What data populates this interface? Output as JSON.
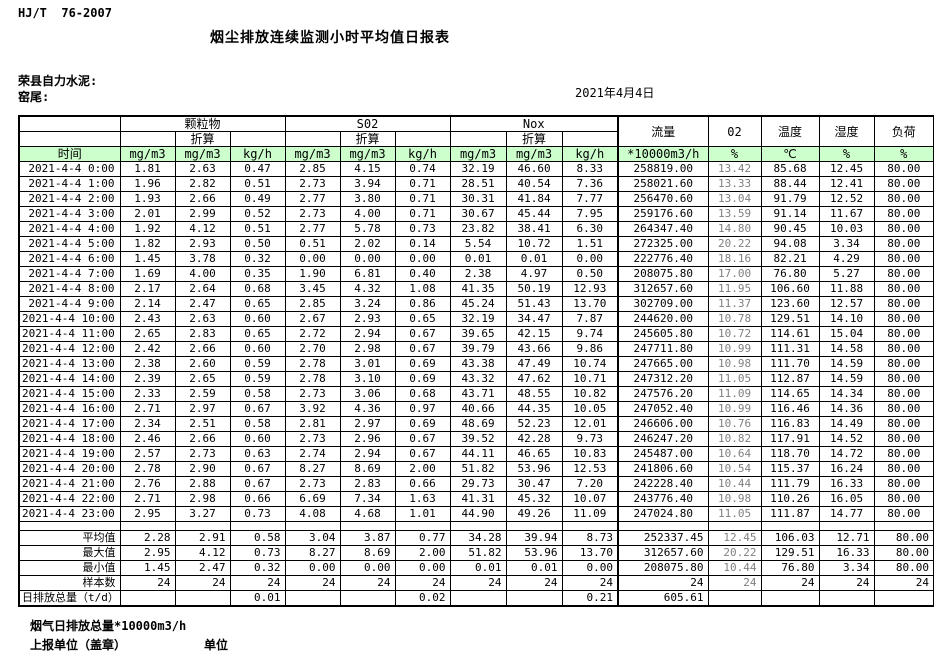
{
  "page": {
    "standard_code": "HJ/T  76-2007",
    "title": "烟尘排放连续监测小时平均值日报表",
    "company": "荣县自力水泥:",
    "location": "窑尾:",
    "date": "2021年4月4日"
  },
  "colors": {
    "header_green": "#ccffcc",
    "o2_value_text": "#808080",
    "border": "#000000"
  },
  "table": {
    "time_label": "时间",
    "converted_label": "折算",
    "groups": {
      "particulate": "颗粒物",
      "so2": "S02",
      "nox": "Nox",
      "flow": "流量",
      "o2": "02",
      "temperature": "温度",
      "humidity": "湿度",
      "load": "负荷"
    },
    "units": [
      "mg/m3",
      "mg/m3",
      "kg/h",
      "mg/m3",
      "mg/m3",
      "kg/h",
      "mg/m3",
      "mg/m3",
      "kg/h",
      "*10000m3/h",
      "%",
      "℃",
      "%",
      "%"
    ],
    "rows": [
      {
        "time": "2021-4-4 0:00",
        "values": [
          "1.81",
          "2.63",
          "0.47",
          "2.85",
          "4.15",
          "0.74",
          "32.19",
          "46.60",
          "8.33",
          "258819.00",
          "13.42",
          "85.68",
          "12.45",
          "80.00"
        ]
      },
      {
        "time": "2021-4-4 1:00",
        "values": [
          "1.96",
          "2.82",
          "0.51",
          "2.73",
          "3.94",
          "0.71",
          "28.51",
          "40.54",
          "7.36",
          "258021.60",
          "13.33",
          "88.44",
          "12.41",
          "80.00"
        ]
      },
      {
        "time": "2021-4-4 2:00",
        "values": [
          "1.93",
          "2.66",
          "0.49",
          "2.77",
          "3.80",
          "0.71",
          "30.31",
          "41.84",
          "7.77",
          "256470.60",
          "13.04",
          "91.79",
          "12.52",
          "80.00"
        ]
      },
      {
        "time": "2021-4-4 3:00",
        "values": [
          "2.01",
          "2.99",
          "0.52",
          "2.73",
          "4.00",
          "0.71",
          "30.67",
          "45.44",
          "7.95",
          "259176.60",
          "13.59",
          "91.14",
          "11.67",
          "80.00"
        ]
      },
      {
        "time": "2021-4-4 4:00",
        "values": [
          "1.92",
          "4.12",
          "0.51",
          "2.77",
          "5.78",
          "0.73",
          "23.82",
          "38.41",
          "6.30",
          "264347.40",
          "14.80",
          "90.45",
          "10.03",
          "80.00"
        ]
      },
      {
        "time": "2021-4-4 5:00",
        "values": [
          "1.82",
          "2.93",
          "0.50",
          "0.51",
          "2.02",
          "0.14",
          "5.54",
          "10.72",
          "1.51",
          "272325.00",
          "20.22",
          "94.08",
          "3.34",
          "80.00"
        ]
      },
      {
        "time": "2021-4-4 6:00",
        "values": [
          "1.45",
          "3.78",
          "0.32",
          "0.00",
          "0.00",
          "0.00",
          "0.01",
          "0.01",
          "0.00",
          "222776.40",
          "18.16",
          "82.21",
          "4.29",
          "80.00"
        ]
      },
      {
        "time": "2021-4-4 7:00",
        "values": [
          "1.69",
          "4.00",
          "0.35",
          "1.90",
          "6.81",
          "0.40",
          "2.38",
          "4.97",
          "0.50",
          "208075.80",
          "17.00",
          "76.80",
          "5.27",
          "80.00"
        ]
      },
      {
        "time": "2021-4-4 8:00",
        "values": [
          "2.17",
          "2.64",
          "0.68",
          "3.45",
          "4.32",
          "1.08",
          "41.35",
          "50.19",
          "12.93",
          "312657.60",
          "11.95",
          "106.60",
          "11.88",
          "80.00"
        ]
      },
      {
        "time": "2021-4-4 9:00",
        "values": [
          "2.14",
          "2.47",
          "0.65",
          "2.85",
          "3.24",
          "0.86",
          "45.24",
          "51.43",
          "13.70",
          "302709.00",
          "11.37",
          "123.60",
          "12.57",
          "80.00"
        ]
      },
      {
        "time": "2021-4-4 10:00",
        "values": [
          "2.43",
          "2.63",
          "0.60",
          "2.67",
          "2.93",
          "0.65",
          "32.19",
          "34.47",
          "7.87",
          "244620.00",
          "10.78",
          "129.51",
          "14.10",
          "80.00"
        ]
      },
      {
        "time": "2021-4-4 11:00",
        "values": [
          "2.65",
          "2.83",
          "0.65",
          "2.72",
          "2.94",
          "0.67",
          "39.65",
          "42.15",
          "9.74",
          "245605.80",
          "10.72",
          "114.61",
          "15.04",
          "80.00"
        ]
      },
      {
        "time": "2021-4-4 12:00",
        "values": [
          "2.42",
          "2.66",
          "0.60",
          "2.70",
          "2.98",
          "0.67",
          "39.79",
          "43.66",
          "9.86",
          "247711.80",
          "10.99",
          "111.31",
          "14.58",
          "80.00"
        ]
      },
      {
        "time": "2021-4-4 13:00",
        "values": [
          "2.38",
          "2.60",
          "0.59",
          "2.78",
          "3.01",
          "0.69",
          "43.38",
          "47.49",
          "10.74",
          "247665.00",
          "10.98",
          "111.70",
          "14.59",
          "80.00"
        ]
      },
      {
        "time": "2021-4-4 14:00",
        "values": [
          "2.39",
          "2.65",
          "0.59",
          "2.78",
          "3.10",
          "0.69",
          "43.32",
          "47.62",
          "10.71",
          "247312.20",
          "11.05",
          "112.87",
          "14.59",
          "80.00"
        ]
      },
      {
        "time": "2021-4-4 15:00",
        "values": [
          "2.33",
          "2.59",
          "0.58",
          "2.73",
          "3.06",
          "0.68",
          "43.71",
          "48.55",
          "10.82",
          "247576.20",
          "11.09",
          "114.65",
          "14.34",
          "80.00"
        ]
      },
      {
        "time": "2021-4-4 16:00",
        "values": [
          "2.71",
          "2.97",
          "0.67",
          "3.92",
          "4.36",
          "0.97",
          "40.66",
          "44.35",
          "10.05",
          "247052.40",
          "10.99",
          "116.46",
          "14.36",
          "80.00"
        ]
      },
      {
        "time": "2021-4-4 17:00",
        "values": [
          "2.34",
          "2.51",
          "0.58",
          "2.81",
          "2.97",
          "0.69",
          "48.69",
          "52.23",
          "12.01",
          "246606.00",
          "10.76",
          "116.83",
          "14.49",
          "80.00"
        ]
      },
      {
        "time": "2021-4-4 18:00",
        "values": [
          "2.46",
          "2.66",
          "0.60",
          "2.73",
          "2.96",
          "0.67",
          "39.52",
          "42.28",
          "9.73",
          "246247.20",
          "10.82",
          "117.91",
          "14.52",
          "80.00"
        ]
      },
      {
        "time": "2021-4-4 19:00",
        "values": [
          "2.57",
          "2.73",
          "0.63",
          "2.74",
          "2.94",
          "0.67",
          "44.11",
          "46.65",
          "10.83",
          "245487.00",
          "10.64",
          "118.70",
          "14.72",
          "80.00"
        ]
      },
      {
        "time": "2021-4-4 20:00",
        "values": [
          "2.78",
          "2.90",
          "0.67",
          "8.27",
          "8.69",
          "2.00",
          "51.82",
          "53.96",
          "12.53",
          "241806.60",
          "10.54",
          "115.37",
          "16.24",
          "80.00"
        ]
      },
      {
        "time": "2021-4-4 21:00",
        "values": [
          "2.76",
          "2.88",
          "0.67",
          "2.73",
          "2.83",
          "0.66",
          "29.73",
          "30.47",
          "7.20",
          "242228.40",
          "10.44",
          "111.79",
          "16.33",
          "80.00"
        ]
      },
      {
        "time": "2021-4-4 22:00",
        "values": [
          "2.71",
          "2.98",
          "0.66",
          "6.69",
          "7.34",
          "1.63",
          "41.31",
          "45.32",
          "10.07",
          "243776.40",
          "10.98",
          "110.26",
          "16.05",
          "80.00"
        ]
      },
      {
        "time": "2021-4-4 23:00",
        "values": [
          "2.95",
          "3.27",
          "0.73",
          "4.08",
          "4.68",
          "1.01",
          "44.90",
          "49.26",
          "11.09",
          "247024.80",
          "11.05",
          "111.87",
          "14.77",
          "80.00"
        ]
      }
    ],
    "summary": [
      {
        "label": "平均值",
        "values": [
          "2.28",
          "2.91",
          "0.58",
          "3.04",
          "3.87",
          "0.77",
          "34.28",
          "39.94",
          "8.73",
          "252337.45",
          "12.45",
          "106.03",
          "12.71",
          "80.00"
        ]
      },
      {
        "label": "最大值",
        "values": [
          "2.95",
          "4.12",
          "0.73",
          "8.27",
          "8.69",
          "2.00",
          "51.82",
          "53.96",
          "13.70",
          "312657.60",
          "20.22",
          "129.51",
          "16.33",
          "80.00"
        ]
      },
      {
        "label": "最小值",
        "values": [
          "1.45",
          "2.47",
          "0.32",
          "0.00",
          "0.00",
          "0.00",
          "0.01",
          "0.01",
          "0.00",
          "208075.80",
          "10.44",
          "76.80",
          "3.34",
          "80.00"
        ]
      },
      {
        "label": "样本数",
        "values": [
          "24",
          "24",
          "24",
          "24",
          "24",
          "24",
          "24",
          "24",
          "24",
          "24",
          "24",
          "24",
          "24",
          "24"
        ]
      },
      {
        "label": "日排放总量（t/d）",
        "label_align": "left",
        "values": [
          "",
          "",
          "0.01",
          "",
          "",
          "0.02",
          "",
          "",
          "0.21",
          "605.61",
          "",
          "",
          "",
          ""
        ]
      }
    ]
  },
  "footer": {
    "flue_gas_total": "烟气日排放总量*10000m3/h",
    "reporting_unit": "上报单位（盖章）",
    "unit": "单位"
  }
}
